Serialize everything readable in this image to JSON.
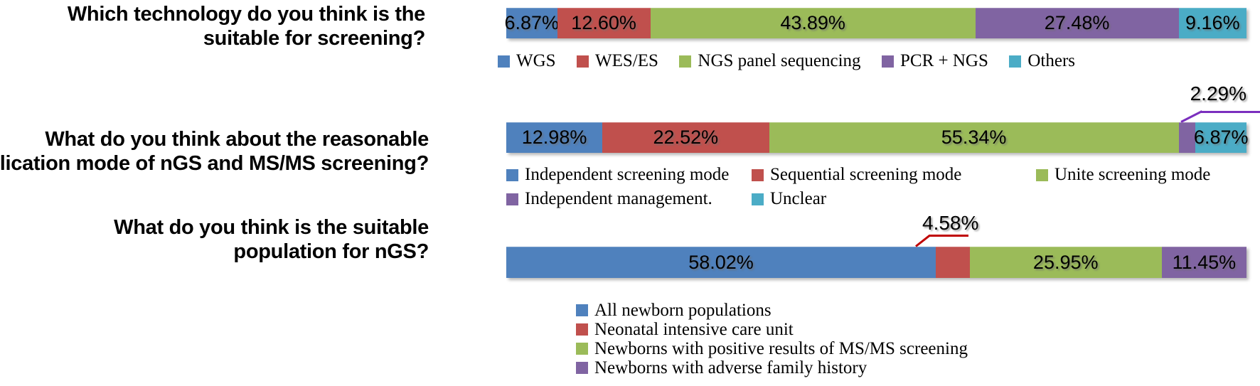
{
  "figure": {
    "background": "#ffffff",
    "palette": {
      "blue": "#4F81BD",
      "red": "#C0504D",
      "green": "#9BBB59",
      "purple": "#8064A2",
      "teal": "#4BACC6"
    }
  },
  "chart_data": [
    {
      "type": "bar",
      "orientation": "horizontal",
      "stacked": true,
      "question": "Which technology do you think is the\nsuitable for screening?",
      "xlim": [
        0,
        100
      ],
      "unit": "%",
      "legend_position": "bottom-single-row",
      "series": [
        {
          "name": "WGS",
          "value": 6.87,
          "label": "6.87%",
          "color": "#4F81BD"
        },
        {
          "name": "WES/ES",
          "value": 12.6,
          "label": "12.60%",
          "color": "#C0504D"
        },
        {
          "name": "NGS panel sequencing",
          "value": 43.89,
          "label": "43.89%",
          "color": "#9BBB59"
        },
        {
          "name": "PCR + NGS",
          "value": 27.48,
          "label": "27.48%",
          "color": "#8064A2"
        },
        {
          "name": "Others",
          "value": 9.16,
          "label": "9.16%",
          "color": "#4BACC6"
        }
      ]
    },
    {
      "type": "bar",
      "orientation": "horizontal",
      "stacked": true,
      "question": "What do you think about the reasonable\napplication mode of nGS and MS/MS screening?",
      "xlim": [
        0,
        100
      ],
      "unit": "%",
      "legend_position": "bottom-two-rows",
      "series": [
        {
          "name": "Independent screening mode",
          "value": 12.98,
          "label": "12.98%",
          "color": "#4F81BD"
        },
        {
          "name": "Sequential screening mode",
          "value": 22.52,
          "label": "22.52%",
          "color": "#C0504D"
        },
        {
          "name": "Unite screening mode",
          "value": 55.34,
          "label": "55.34%",
          "color": "#9BBB59"
        },
        {
          "name": "Independent management.",
          "value": 2.29,
          "label": "2.29%",
          "color": "#8064A2",
          "label_outside": true
        },
        {
          "name": "Unclear",
          "value": 6.87,
          "label": "6.87%",
          "color": "#4BACC6"
        }
      ],
      "callout": {
        "label": "2.29%",
        "line_color": "#7B2FBE"
      }
    },
    {
      "type": "bar",
      "orientation": "horizontal",
      "stacked": true,
      "question": "What do you think is the suitable\npopulation for nGS?",
      "xlim": [
        0,
        100
      ],
      "unit": "%",
      "legend_position": "bottom-vertical-list",
      "series": [
        {
          "name": "All newborn populations",
          "value": 58.02,
          "label": "58.02%",
          "color": "#4F81BD"
        },
        {
          "name": "Neonatal intensive care unit",
          "value": 4.58,
          "label": "4.58%",
          "color": "#C0504D",
          "label_outside": true
        },
        {
          "name": "Newborns with positive results of MS/MS screening",
          "value": 25.95,
          "label": "25.95%",
          "color": "#9BBB59"
        },
        {
          "name": "Newborns with adverse family history",
          "value": 11.45,
          "label": "11.45%",
          "color": "#8064A2"
        }
      ],
      "callout": {
        "label": "4.58%",
        "line_color": "#C00000"
      }
    }
  ]
}
